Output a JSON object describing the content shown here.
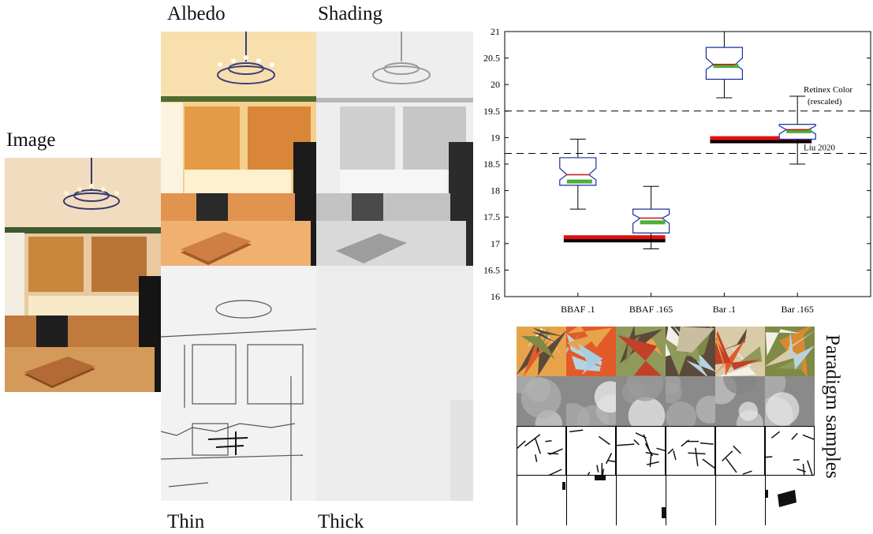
{
  "figure": {
    "image_label": "Image",
    "albedo_label": "Albedo",
    "shading_label": "Shading",
    "thin_label": "Thin",
    "thick_label": "Thick",
    "paradigm_label": "Paradigm samples"
  },
  "chart_data": {
    "type": "box",
    "title": "",
    "xlabel": "",
    "ylabel": "",
    "ylim": [
      16,
      21
    ],
    "yticks": [
      "16",
      "16.5",
      "17",
      "17.5",
      "18",
      "18.5",
      "19",
      "19.5",
      "20",
      "20.5",
      "21"
    ],
    "categories": [
      "BBAF .1",
      "BBAF .165",
      "Bar .1",
      "Bar .165"
    ],
    "boxes": [
      {
        "whisker_low": 17.65,
        "q1": 18.1,
        "median": 18.3,
        "q3": 18.62,
        "whisker_high": 18.97,
        "green_mean": 18.17,
        "notch_low": 18.2,
        "notch_high": 18.42
      },
      {
        "whisker_low": 16.9,
        "q1": 17.2,
        "median": 17.48,
        "q3": 17.65,
        "whisker_high": 18.08,
        "green_mean": 17.4,
        "notch_low": 17.38,
        "notch_high": 17.55
      },
      {
        "whisker_low": 19.75,
        "q1": 20.1,
        "median": 20.38,
        "q3": 20.7,
        "whisker_high": 21.0,
        "green_mean": 20.35,
        "notch_low": 20.28,
        "notch_high": 20.5
      },
      {
        "whisker_low": 18.5,
        "q1": 18.97,
        "median": 19.15,
        "q3": 19.25,
        "whisker_high": 19.78,
        "green_mean": 19.12,
        "notch_low": 19.07,
        "notch_high": 19.22
      }
    ],
    "reference_bars": [
      {
        "from": "BBAF .1",
        "to": "BBAF .165",
        "red": 17.12,
        "black": 17.06
      },
      {
        "from": "Bar .1",
        "to": "Bar .165",
        "red": 18.99,
        "black": 18.93
      }
    ],
    "reference_lines": [
      {
        "value": 19.5,
        "label_line1": "Retinex Color",
        "label_line2": "(rescaled)"
      },
      {
        "value": 18.7,
        "label_line1": "Liu 2020",
        "label_line2": ""
      }
    ],
    "colors": {
      "box": "#1a2fa0",
      "median": "#cc1111",
      "mean": "#4caf3a",
      "ref_red": "#e01010",
      "ref_black": "#000000",
      "dash": "#000000"
    }
  }
}
